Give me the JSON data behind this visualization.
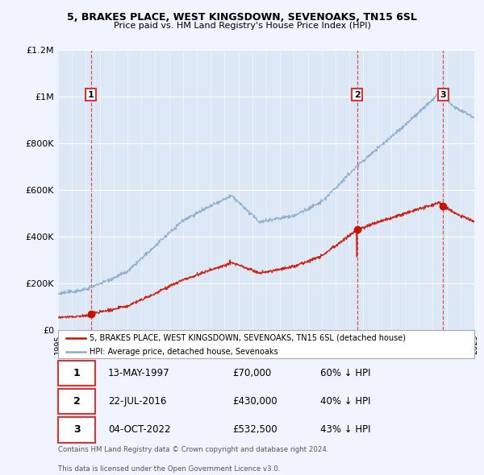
{
  "title1": "5, BRAKES PLACE, WEST KINGSDOWN, SEVENOAKS, TN15 6SL",
  "title2": "Price paid vs. HM Land Registry's House Price Index (HPI)",
  "background_color": "#f0f4ff",
  "plot_background": "#dce8f5",
  "hpi_color": "#88aacc",
  "price_color": "#cc1100",
  "dashed_color": "#dd3333",
  "transactions": [
    {
      "num": 1,
      "date_year": 1997.37,
      "price": 70000,
      "pct": "60% ↓ HPI",
      "date_label": "13-MAY-1997",
      "price_label": "£70,000"
    },
    {
      "num": 2,
      "date_year": 2016.56,
      "price": 430000,
      "pct": "40% ↓ HPI",
      "date_label": "22-JUL-2016",
      "price_label": "£430,000"
    },
    {
      "num": 3,
      "date_year": 2022.76,
      "price": 532500,
      "pct": "43% ↓ HPI",
      "date_label": "04-OCT-2022",
      "price_label": "£532,500"
    }
  ],
  "legend_line1": "5, BRAKES PLACE, WEST KINGSDOWN, SEVENOAKS, TN15 6SL (detached house)",
  "legend_line2": "HPI: Average price, detached house, Sevenoaks",
  "footer1": "Contains HM Land Registry data © Crown copyright and database right 2024.",
  "footer2": "This data is licensed under the Open Government Licence v3.0.",
  "ylim": [
    0,
    1200000
  ],
  "yticks": [
    0,
    200000,
    400000,
    600000,
    800000,
    1000000,
    1200000
  ],
  "ytick_labels": [
    "£0",
    "£200K",
    "£400K",
    "£600K",
    "£800K",
    "£1M",
    "£1.2M"
  ],
  "xstart_year": 1995,
  "xend_year": 2025
}
